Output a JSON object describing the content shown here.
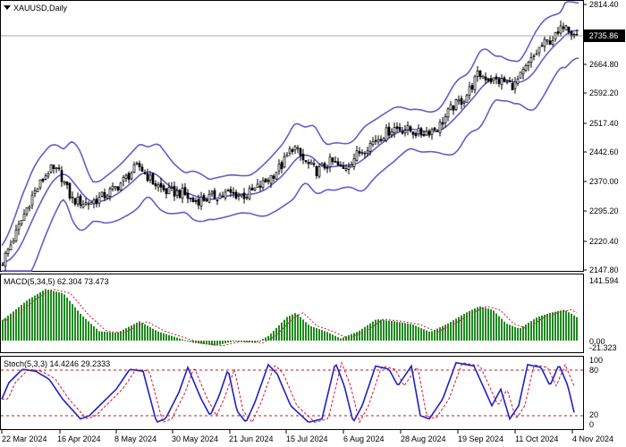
{
  "window": {
    "symbol_timeframe": "XAUUSD,Daily",
    "menu_icon": "triangle-down-icon"
  },
  "colors": {
    "background": "#ffffff",
    "frame": "#000000",
    "candle": "#000000",
    "bollinger": "#6a5acd",
    "macd_histogram": "#1f8a1f",
    "macd_signal": "#d2143c",
    "stoch_main": "#1f1fc8",
    "stoch_signal": "#d2143c",
    "level_line": "#b22222",
    "price_tag": "#000000",
    "price_tag_text": "#ffffff",
    "current_price_line": "#a9a9a9"
  },
  "main_panel": {
    "current_price": "2735.86",
    "price_axis": [
      "2814.40",
      "2735.86",
      "2664.80",
      "2592.20",
      "2517.40",
      "2442.60",
      "2370.00",
      "2295.20",
      "2220.40",
      "2147.80"
    ]
  },
  "macd_panel": {
    "label": "MACD(5,34,5) 62.304 73.473",
    "axis": [
      "141.594",
      "0.00",
      "-21.323"
    ]
  },
  "stoch_panel": {
    "label": "Stoch(5,3,3) 14.4246 29.2333",
    "axis": [
      "100",
      "80",
      "20",
      "0"
    ],
    "levels": [
      80,
      20
    ]
  },
  "date_axis": [
    "22 Mar 2024",
    "16 Apr 2024",
    "8 May 2024",
    "30 May 2024",
    "21 Jun 2024",
    "15 Jul 2024",
    "6 Aug 2024",
    "28 Aug 2024",
    "19 Sep 2024",
    "11 Oct 2024",
    "4 Nov 2024"
  ],
  "chart_data": {
    "type": "line",
    "title": "XAUUSD,Daily",
    "x": [
      "22 Mar 2024",
      "16 Apr 2024",
      "8 May 2024",
      "30 May 2024",
      "21 Jun 2024",
      "15 Jul 2024",
      "6 Aug 2024",
      "28 Aug 2024",
      "19 Sep 2024",
      "11 Oct 2024",
      "4 Nov 2024"
    ],
    "series": [
      {
        "values": [
          2165,
          2390,
          2315,
          2335,
          2330,
          2420,
          2425,
          2520,
          2630,
          2665,
          2736
        ]
      }
    ],
    "ylim": [
      2147.8,
      2814.4
    ]
  }
}
